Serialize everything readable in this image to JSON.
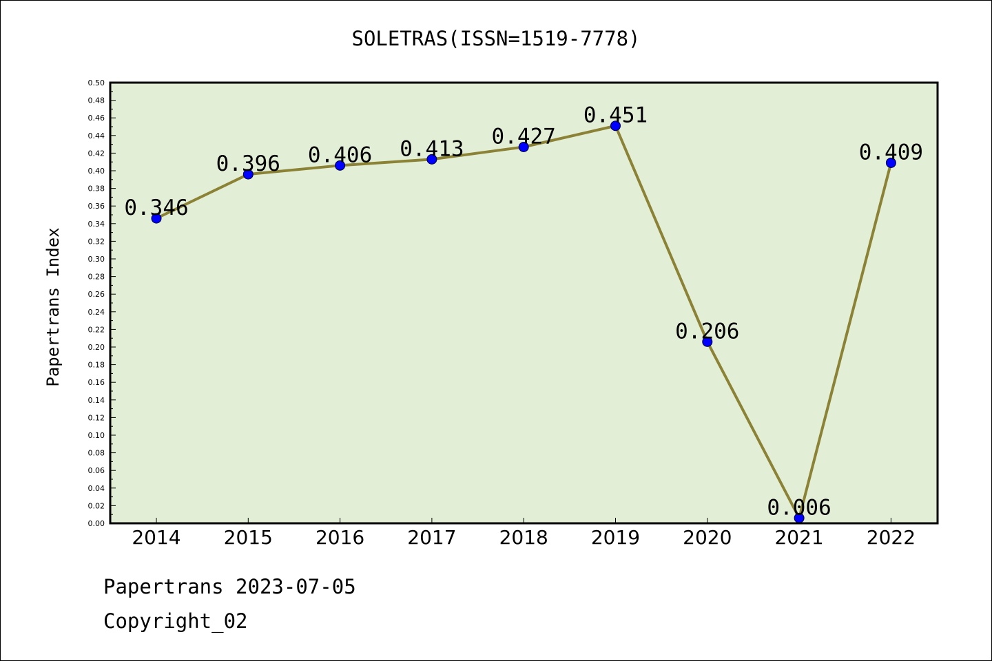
{
  "chart_data": {
    "type": "line",
    "title": "SOLETRAS(ISSN=1519-7778)",
    "xlabel": "",
    "ylabel": "Papertrans Index",
    "categories": [
      "2014",
      "2015",
      "2016",
      "2017",
      "2018",
      "2019",
      "2020",
      "2021",
      "2022"
    ],
    "series": [
      {
        "values": [
          0.346,
          0.396,
          0.406,
          0.413,
          0.427,
          0.451,
          0.206,
          0.006,
          0.409
        ],
        "labels": [
          "0.346",
          "0.396",
          "0.406",
          "0.413",
          "0.427",
          "0.451",
          "0.206",
          "0.006",
          "0.409"
        ]
      }
    ],
    "ylim": [
      0,
      0.5
    ],
    "yticks": [
      "0.00",
      "0.02",
      "0.04",
      "0.06",
      "0.08",
      "0.10",
      "0.12",
      "0.14",
      "0.16",
      "0.18",
      "0.20",
      "0.22",
      "0.24",
      "0.26",
      "0.28",
      "0.30",
      "0.32",
      "0.34",
      "0.36",
      "0.38",
      "0.40",
      "0.42",
      "0.44",
      "0.46",
      "0.48",
      "0.50"
    ],
    "grid": false,
    "legend": "none",
    "colors": {
      "plot_background": "#e2efd6",
      "line": "#8b8236",
      "marker": "#0000ff"
    }
  },
  "footer": {
    "line1": "Papertrans 2023-07-05",
    "line2": "Copyright_02"
  }
}
